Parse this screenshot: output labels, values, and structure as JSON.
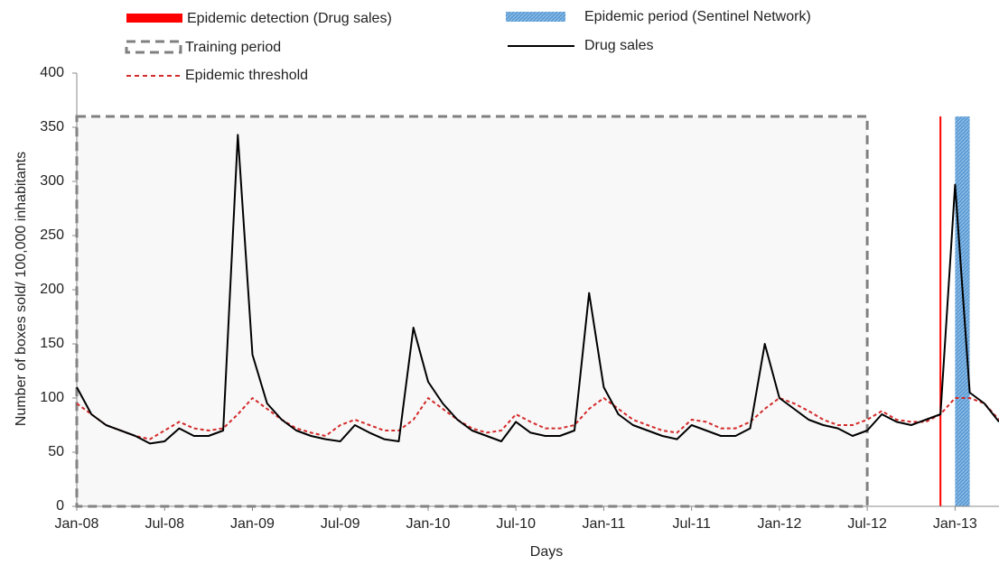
{
  "chart_data": {
    "type": "line",
    "y_label": "Number of boxes sold/ 100,000 inhabitants",
    "x_label": "Days",
    "x": [
      "2008-01",
      "2008-02",
      "2008-03",
      "2008-04",
      "2008-05",
      "2008-06",
      "2008-07",
      "2008-08",
      "2008-09",
      "2008-10",
      "2008-11",
      "2008-12",
      "2009-01",
      "2009-02",
      "2009-03",
      "2009-04",
      "2009-05",
      "2009-06",
      "2009-07",
      "2009-08",
      "2009-09",
      "2009-10",
      "2009-11",
      "2009-12",
      "2010-01",
      "2010-02",
      "2010-03",
      "2010-04",
      "2010-05",
      "2010-06",
      "2010-07",
      "2010-08",
      "2010-09",
      "2010-10",
      "2010-11",
      "2010-12",
      "2011-01",
      "2011-02",
      "2011-03",
      "2011-04",
      "2011-05",
      "2011-06",
      "2011-07",
      "2011-08",
      "2011-09",
      "2011-10",
      "2011-11",
      "2011-12",
      "2012-01",
      "2012-02",
      "2012-03",
      "2012-04",
      "2012-05",
      "2012-06",
      "2012-07",
      "2012-08",
      "2012-09",
      "2012-10",
      "2012-11",
      "2012-12",
      "2013-01",
      "2013-02",
      "2013-03",
      "2013-04"
    ],
    "xlim": [
      "2008-01",
      "2013-04"
    ],
    "xticks": [
      {
        "value": "2008-01",
        "label": "Jan-08"
      },
      {
        "value": "2008-07",
        "label": "Jul-08"
      },
      {
        "value": "2009-01",
        "label": "Jan-09"
      },
      {
        "value": "2009-07",
        "label": "Jul-09"
      },
      {
        "value": "2010-01",
        "label": "Jan-10"
      },
      {
        "value": "2010-07",
        "label": "Jul-10"
      },
      {
        "value": "2011-01",
        "label": "Jan-11"
      },
      {
        "value": "2011-07",
        "label": "Jul-11"
      },
      {
        "value": "2012-01",
        "label": "Jan-12"
      },
      {
        "value": "2012-07",
        "label": "Jul-12"
      },
      {
        "value": "2013-01",
        "label": "Jan-13"
      }
    ],
    "ylim": [
      0,
      400
    ],
    "yticks": [
      0,
      50,
      100,
      150,
      200,
      250,
      300,
      350,
      400
    ],
    "series": [
      {
        "name": "Drug sales",
        "color": "#000000",
        "dashed": false,
        "values": [
          110,
          85,
          75,
          70,
          65,
          58,
          60,
          72,
          65,
          65,
          70,
          343,
          140,
          95,
          80,
          70,
          65,
          62,
          60,
          75,
          68,
          62,
          60,
          165,
          115,
          95,
          80,
          70,
          65,
          60,
          78,
          68,
          65,
          65,
          70,
          197,
          110,
          85,
          75,
          70,
          65,
          62,
          75,
          70,
          65,
          65,
          72,
          150,
          100,
          90,
          80,
          75,
          72,
          65,
          70,
          85,
          78,
          75,
          80,
          85,
          297,
          105,
          95,
          78
        ]
      },
      {
        "name": "Epidemic threshold",
        "color": "#d42a2a",
        "dashed": true,
        "values": [
          95,
          85,
          75,
          70,
          65,
          62,
          70,
          78,
          72,
          70,
          72,
          85,
          100,
          90,
          80,
          72,
          68,
          65,
          75,
          80,
          75,
          70,
          70,
          80,
          100,
          90,
          80,
          72,
          68,
          70,
          85,
          78,
          72,
          72,
          75,
          90,
          100,
          90,
          80,
          75,
          70,
          68,
          80,
          78,
          72,
          72,
          78,
          90,
          100,
          95,
          88,
          80,
          75,
          75,
          80,
          88,
          80,
          78,
          78,
          85,
          100,
          100,
          95,
          80
        ]
      }
    ],
    "training_period": {
      "name": "Training period",
      "color": "#808080",
      "start": "2008-01",
      "end": "2012-07",
      "top": 360
    },
    "epidemic_detection": {
      "name": "Epidemic detection (Drug sales)",
      "color": "#ff0000",
      "date": "2012-12"
    },
    "epidemic_period": {
      "name": "Epidemic period (Sentinel Network)",
      "color": "#5b9bd5",
      "start": "2013-01",
      "end": "2013-01"
    }
  }
}
